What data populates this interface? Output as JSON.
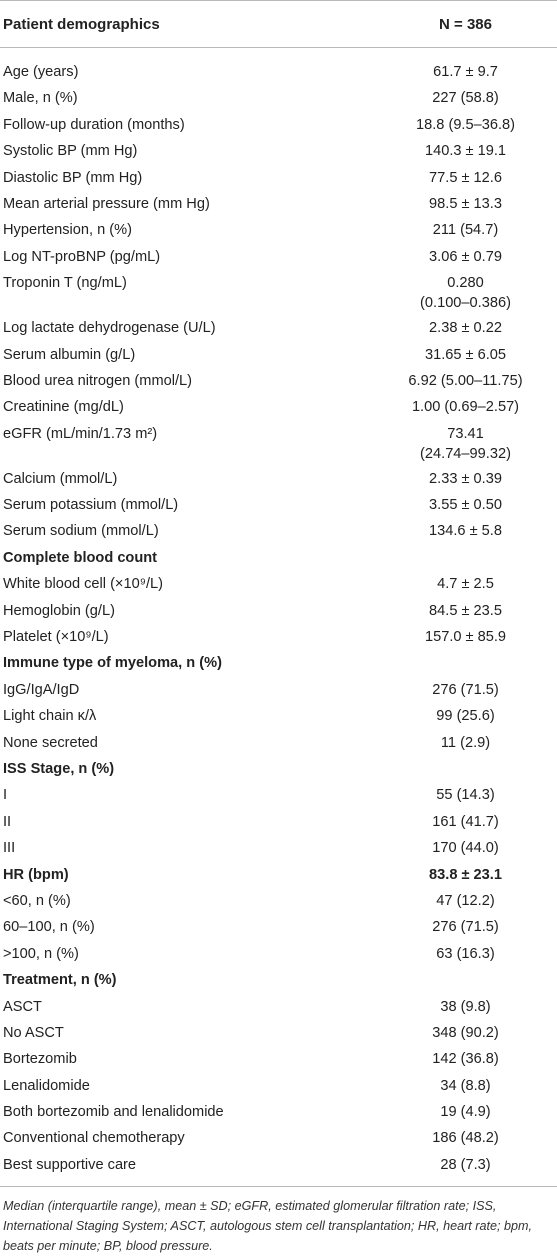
{
  "header": {
    "col1": "Patient demographics",
    "col2": "N = 386"
  },
  "rows": [
    {
      "label": "Age (years)",
      "value": "61.7 ± 9.7"
    },
    {
      "label": "Male, n (%)",
      "value": "227 (58.8)"
    },
    {
      "label": "Follow-up duration (months)",
      "value": "18.8 (9.5–36.8)"
    },
    {
      "label": "Systolic BP (mm Hg)",
      "value": "140.3 ± 19.1"
    },
    {
      "label": "Diastolic BP (mm Hg)",
      "value": "77.5 ± 12.6"
    },
    {
      "label": "Mean arterial pressure (mm Hg)",
      "value": "98.5 ± 13.3"
    },
    {
      "label": "Hypertension, n (%)",
      "value": "211 (54.7)"
    },
    {
      "label": "Log NT-proBNP (pg/mL)",
      "value": "3.06 ± 0.79"
    },
    {
      "label": "Troponin T (ng/mL)",
      "value": "0.280",
      "value2": "(0.100–0.386)"
    },
    {
      "label": "Log lactate dehydrogenase (U/L)",
      "value": "2.38 ± 0.22"
    },
    {
      "label": "Serum albumin (g/L)",
      "value": "31.65 ± 6.05"
    },
    {
      "label": "Blood urea nitrogen (mmol/L)",
      "value": "6.92 (5.00–11.75)"
    },
    {
      "label": "Creatinine (mg/dL)",
      "value": "1.00 (0.69–2.57)"
    },
    {
      "label": "eGFR (mL/min/1.73 m²)",
      "value": "73.41",
      "value2": "(24.74–99.32)"
    },
    {
      "label": "Calcium (mmol/L)",
      "value": "2.33 ± 0.39"
    },
    {
      "label": "Serum potassium (mmol/L)",
      "value": "3.55 ± 0.50"
    },
    {
      "label": "Serum sodium (mmol/L)",
      "value": "134.6 ± 5.8"
    },
    {
      "label": "Complete blood count",
      "value": "",
      "section": true
    },
    {
      "label": "White blood cell (×10⁹/L)",
      "value": "4.7 ± 2.5"
    },
    {
      "label": "Hemoglobin (g/L)",
      "value": "84.5 ± 23.5"
    },
    {
      "label": "Platelet (×10⁹/L)",
      "value": "157.0 ± 85.9"
    },
    {
      "label": "Immune type of myeloma, n (%)",
      "value": "",
      "section": true
    },
    {
      "label": "IgG/IgA/IgD",
      "value": "276 (71.5)"
    },
    {
      "label": "Light chain κ/λ",
      "value": "99 (25.6)"
    },
    {
      "label": "None secreted",
      "value": "11 (2.9)"
    },
    {
      "label": "ISS Stage, n (%)",
      "value": "",
      "section": true
    },
    {
      "label": "I",
      "value": "55 (14.3)"
    },
    {
      "label": "II",
      "value": "161 (41.7)"
    },
    {
      "label": "III",
      "value": "170 (44.0)"
    },
    {
      "label": "HR (bpm)",
      "value": "83.8 ± 23.1",
      "section": true
    },
    {
      "label": "<60, n (%)",
      "value": "47 (12.2)"
    },
    {
      "label": "60–100, n (%)",
      "value": "276 (71.5)"
    },
    {
      "label": ">100, n (%)",
      "value": "63 (16.3)"
    },
    {
      "label": "Treatment, n (%)",
      "value": "",
      "section": true
    },
    {
      "label": "ASCT",
      "value": "38 (9.8)"
    },
    {
      "label": "No ASCT",
      "value": "348 (90.2)"
    },
    {
      "label": "Bortezomib",
      "value": "142 (36.8)"
    },
    {
      "label": "Lenalidomide",
      "value": "34 (8.8)"
    },
    {
      "label": "Both bortezomib and lenalidomide",
      "value": "19 (4.9)"
    },
    {
      "label": "Conventional chemotherapy",
      "value": "186 (48.2)"
    },
    {
      "label": "Best supportive care",
      "value": "28 (7.3)"
    }
  ],
  "footnote": "Median (interquartile range), mean ± SD; eGFR, estimated glomerular filtration rate; ISS, International Staging System; ASCT, autologous stem cell transplantation; HR, heart rate; bpm, beats per minute; BP, blood pressure."
}
